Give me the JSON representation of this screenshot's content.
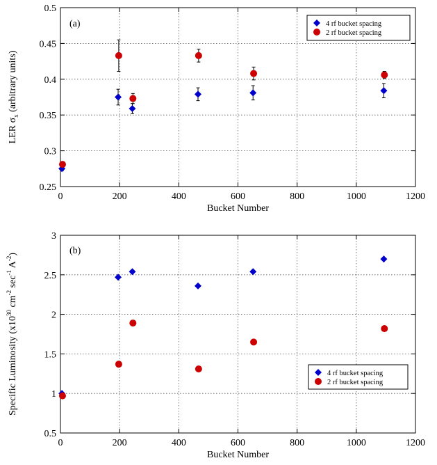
{
  "chart_data": [
    {
      "type": "scatter",
      "panel_label": "(a)",
      "xlabel": "Bucket Number",
      "ylabel_parts": [
        "LER σ",
        "x",
        " (arbitrary units)"
      ],
      "xlim": [
        0,
        1200
      ],
      "ylim": [
        0.25,
        0.5
      ],
      "xticks": [
        0,
        200,
        400,
        600,
        800,
        1000,
        1200
      ],
      "yticks": [
        0.25,
        0.3,
        0.35,
        0.4,
        0.45,
        0.5
      ],
      "ytick_labels": [
        "0.25",
        "0.3",
        "0.35",
        "0.4",
        "0.45",
        "0.5"
      ],
      "grid": true,
      "legend_position": "top-right",
      "series": [
        {
          "name": "4 rf bucket spacing",
          "color": "#0000cc",
          "marker": "diamond",
          "x": [
            5,
            195,
            243,
            465,
            651,
            1093
          ],
          "y": [
            0.275,
            0.375,
            0.359,
            0.379,
            0.381,
            0.384
          ],
          "err": [
            0.003,
            0.011,
            0.007,
            0.009,
            0.01,
            0.01
          ]
        },
        {
          "name": "2 rf bucket spacing",
          "color": "#cc0000",
          "marker": "circle",
          "x": [
            7,
            197,
            245,
            467,
            653,
            1095
          ],
          "y": [
            0.281,
            0.433,
            0.373,
            0.433,
            0.408,
            0.406
          ],
          "err": [
            0.002,
            0.022,
            0.007,
            0.009,
            0.009,
            0.005
          ]
        }
      ]
    },
    {
      "type": "scatter",
      "panel_label": "(b)",
      "xlabel": "Bucket Number",
      "ylabel_parts": [
        "Specific Luminosity (x10",
        "30",
        " cm",
        "-2",
        " sec",
        "-1",
        " A",
        "-2",
        ")"
      ],
      "xlim": [
        0,
        1200
      ],
      "ylim": [
        0.5,
        3
      ],
      "xticks": [
        0,
        200,
        400,
        600,
        800,
        1000,
        1200
      ],
      "yticks": [
        0.5,
        1,
        1.5,
        2,
        2.5,
        3
      ],
      "ytick_labels": [
        "0.5",
        "1",
        "1.5",
        "2",
        "2.5",
        "3"
      ],
      "grid": true,
      "legend_position": "bottom-right",
      "series": [
        {
          "name": "4 rf bucket spacing",
          "color": "#0000cc",
          "marker": "diamond",
          "x": [
            5,
            195,
            243,
            465,
            651,
            1093
          ],
          "y": [
            1.0,
            2.47,
            2.54,
            2.36,
            2.54,
            2.7
          ]
        },
        {
          "name": "2 rf bucket spacing",
          "color": "#cc0000",
          "marker": "circle",
          "x": [
            7,
            197,
            245,
            467,
            653,
            1095
          ],
          "y": [
            0.97,
            1.37,
            1.89,
            1.31,
            1.65,
            1.82
          ]
        }
      ]
    }
  ]
}
